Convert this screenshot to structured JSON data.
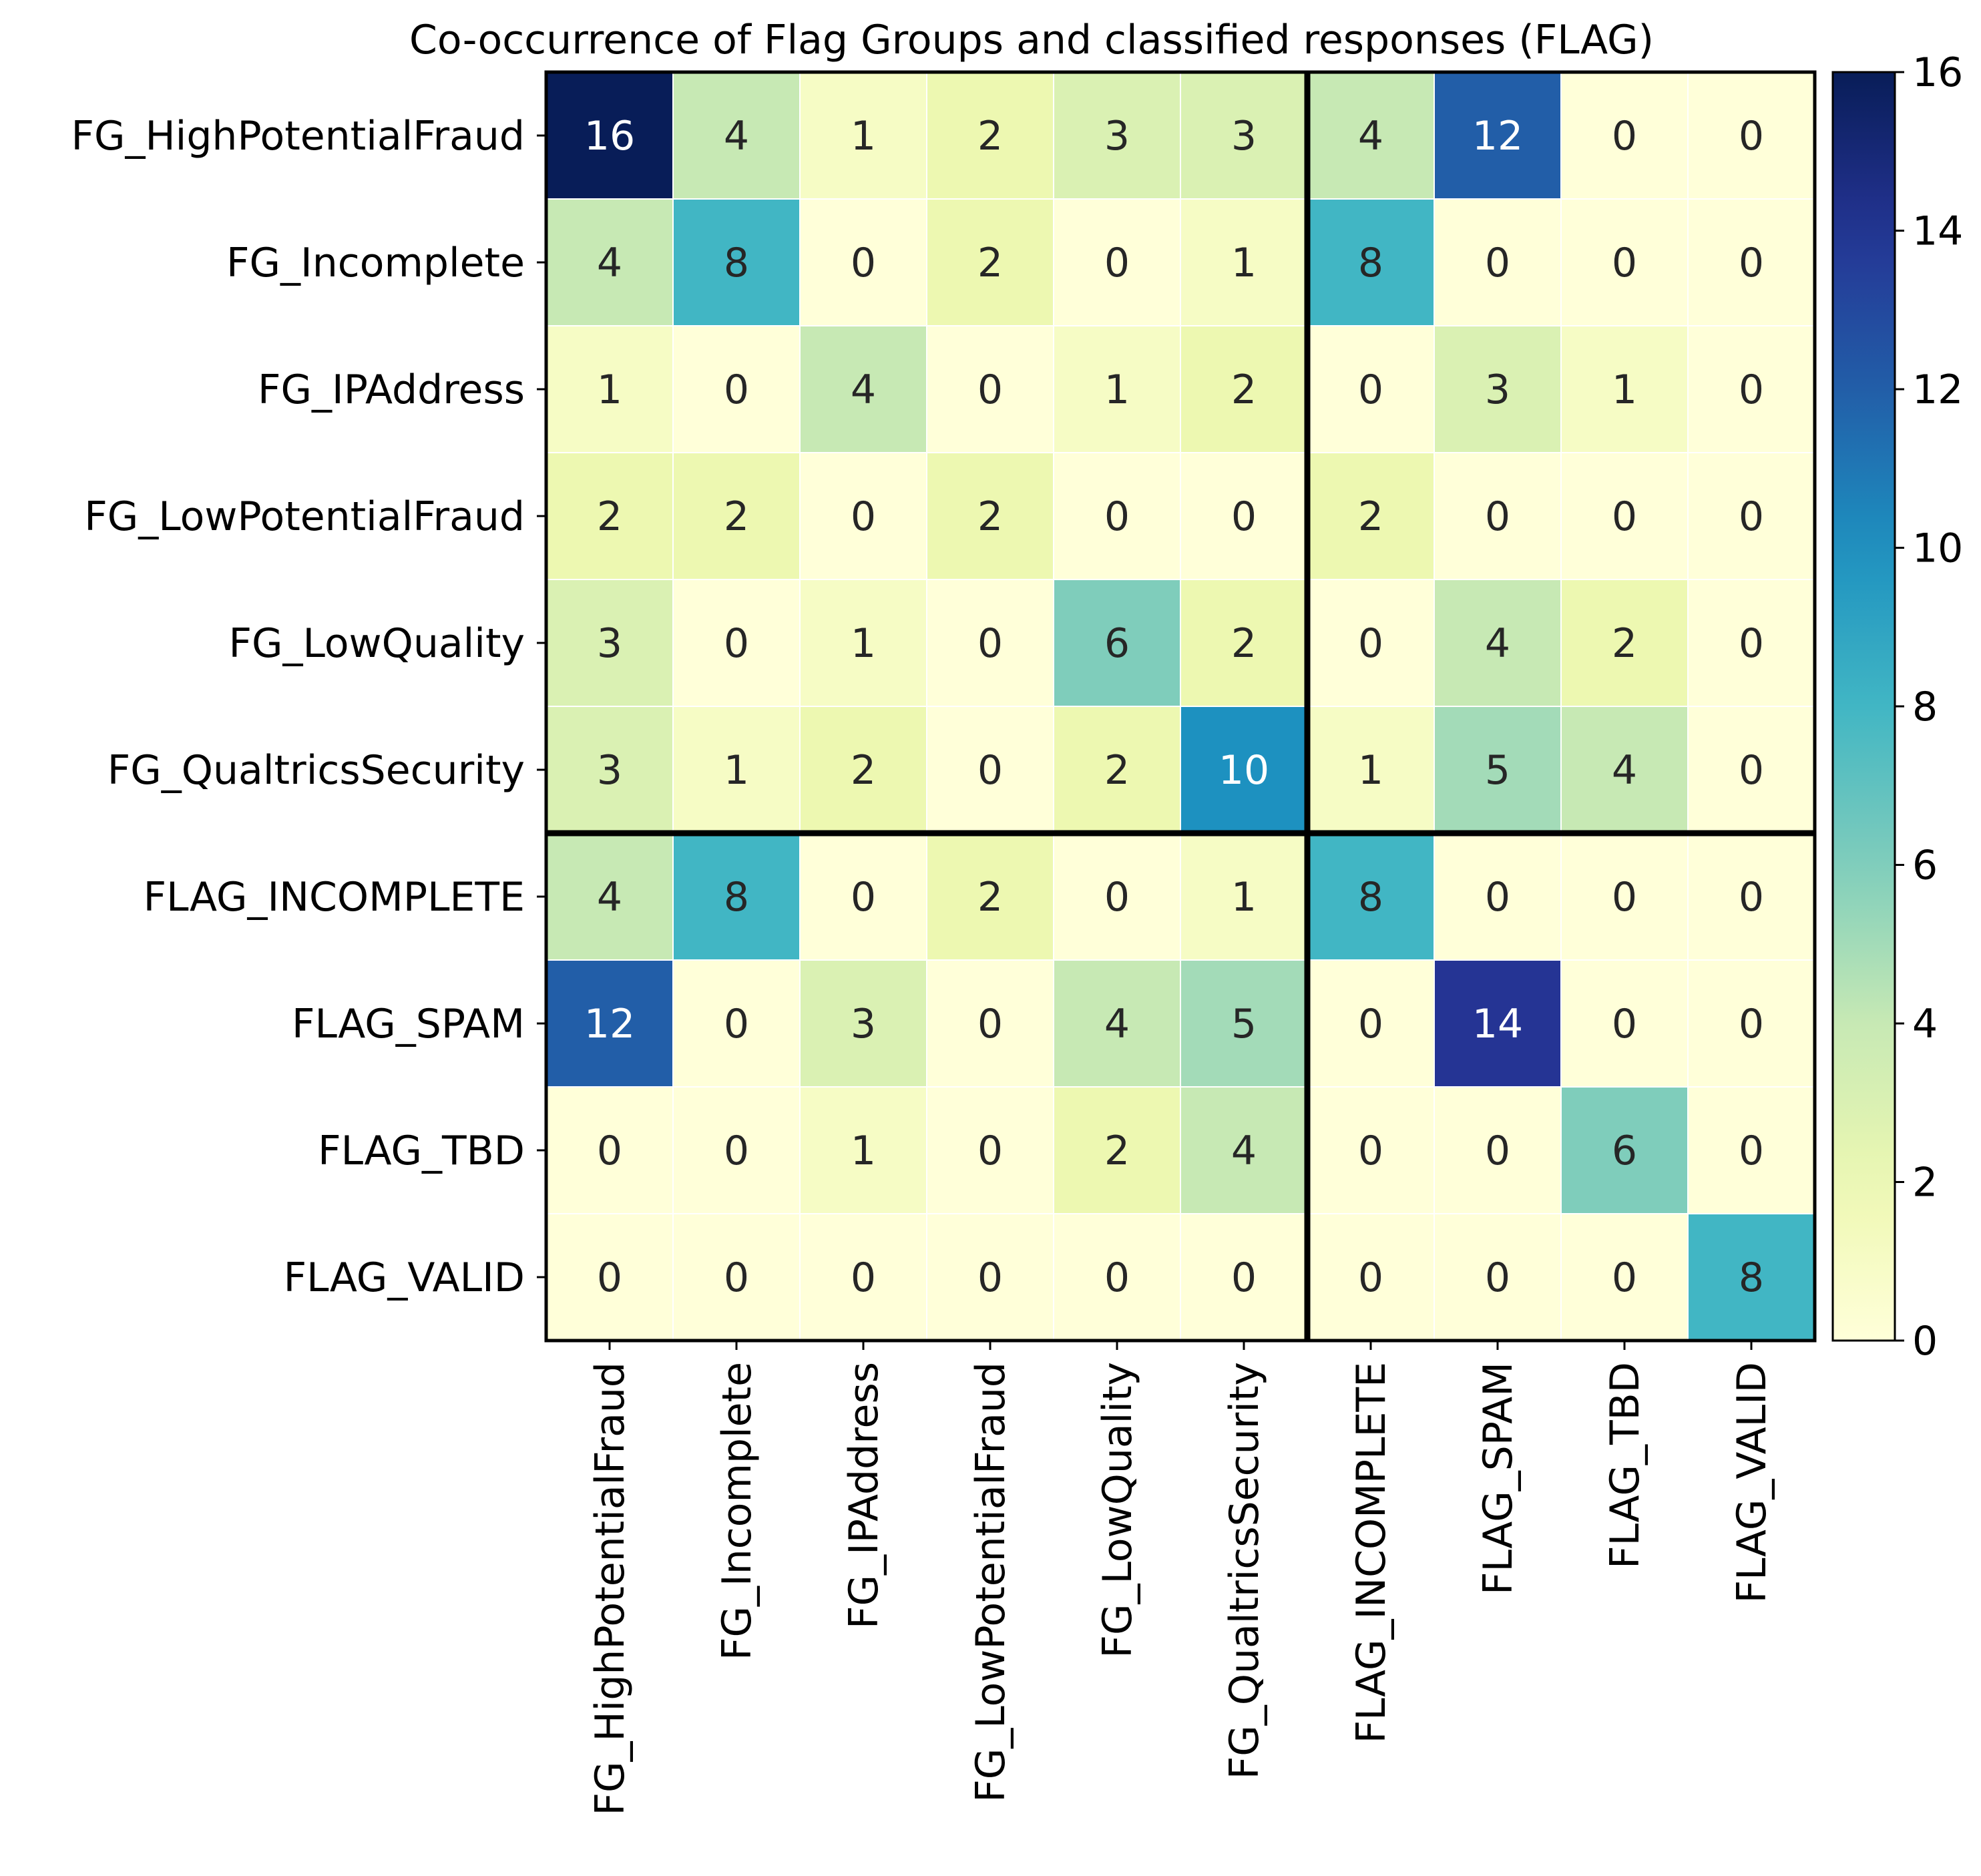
{
  "chart_data": {
    "type": "heatmap",
    "title": "Co-occurrence of Flag Groups and classified responses (FLAG)",
    "row_labels": [
      "FG_HighPotentialFraud",
      "FG_Incomplete",
      "FG_IPAddress",
      "FG_LowPotentialFraud",
      "FG_LowQuality",
      "FG_QualtricsSecurity",
      "FLAG_INCOMPLETE",
      "FLAG_SPAM",
      "FLAG_TBD",
      "FLAG_VALID"
    ],
    "col_labels": [
      "FG_HighPotentialFraud",
      "FG_Incomplete",
      "FG_IPAddress",
      "FG_LowPotentialFraud",
      "FG_LowQuality",
      "FG_QualtricsSecurity",
      "FLAG_INCOMPLETE",
      "FLAG_SPAM",
      "FLAG_TBD",
      "FLAG_VALID"
    ],
    "values": [
      [
        16,
        4,
        1,
        2,
        3,
        3,
        4,
        12,
        0,
        0
      ],
      [
        4,
        8,
        0,
        2,
        0,
        1,
        8,
        0,
        0,
        0
      ],
      [
        1,
        0,
        4,
        0,
        1,
        2,
        0,
        3,
        1,
        0
      ],
      [
        2,
        2,
        0,
        2,
        0,
        0,
        2,
        0,
        0,
        0
      ],
      [
        3,
        0,
        1,
        0,
        6,
        2,
        0,
        4,
        2,
        0
      ],
      [
        3,
        1,
        2,
        0,
        2,
        10,
        1,
        5,
        4,
        0
      ],
      [
        4,
        8,
        0,
        2,
        0,
        1,
        8,
        0,
        0,
        0
      ],
      [
        12,
        0,
        3,
        0,
        4,
        5,
        0,
        14,
        0,
        0
      ],
      [
        0,
        0,
        1,
        0,
        2,
        4,
        0,
        0,
        6,
        0
      ],
      [
        0,
        0,
        0,
        0,
        0,
        0,
        0,
        0,
        0,
        8
      ]
    ],
    "colormap": "YlGnBu",
    "vmin": 0,
    "vmax": 16,
    "colorbar_ticks": [
      0,
      2,
      4,
      6,
      8,
      10,
      12,
      14,
      16
    ],
    "separator_after_index": 6,
    "annotate": true,
    "grid": false
  }
}
